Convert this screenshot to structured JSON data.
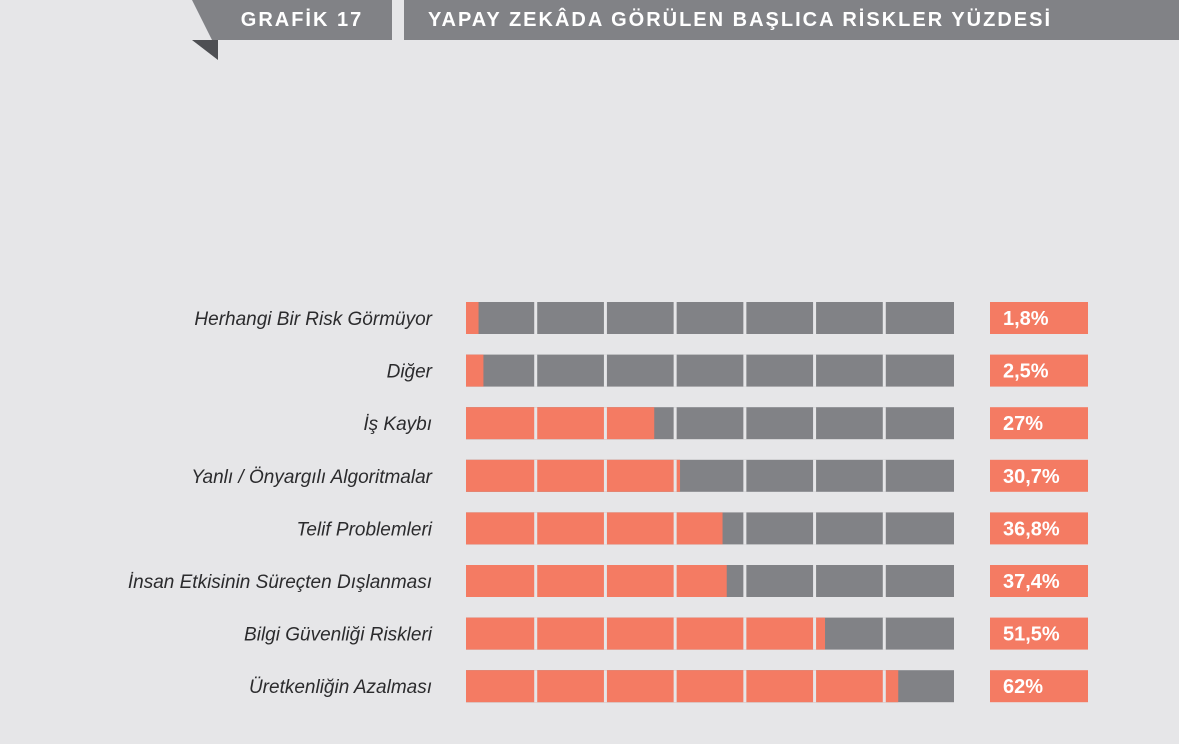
{
  "header": {
    "figure_label": "GRAFİK 17",
    "title": "YAPAY ZEKÂDA GÖRÜLEN BAŞLICA RİSKLER YÜZDESİ"
  },
  "colors": {
    "filled": "#f47b63",
    "empty": "#818286",
    "value_box": "#f47b63",
    "background": "#e6e6e8"
  },
  "chart_data": {
    "type": "bar",
    "orientation": "horizontal",
    "title": "YAPAY ZEKÂDA GÖRÜLEN BAŞLICA RİSKLER YÜZDESİ",
    "xlim": [
      0,
      70
    ],
    "segments": 7,
    "categories": [
      "Herhangi Bir Risk Görmüyor",
      "Diğer",
      "İş Kaybı",
      "Yanlı / Önyargılı Algoritmalar",
      "Telif Problemleri",
      "İnsan Etkisinin Süreçten Dışlanması",
      "Bilgi Güvenliği Riskleri",
      "Üretkenliğin Azalması"
    ],
    "values": [
      1.8,
      2.5,
      27,
      30.7,
      36.8,
      37.4,
      51.5,
      62
    ],
    "value_labels": [
      "1,8%",
      "2,5%",
      "27%",
      "30,7%",
      "36,8%",
      "37,4%",
      "51,5%",
      "62%"
    ]
  }
}
